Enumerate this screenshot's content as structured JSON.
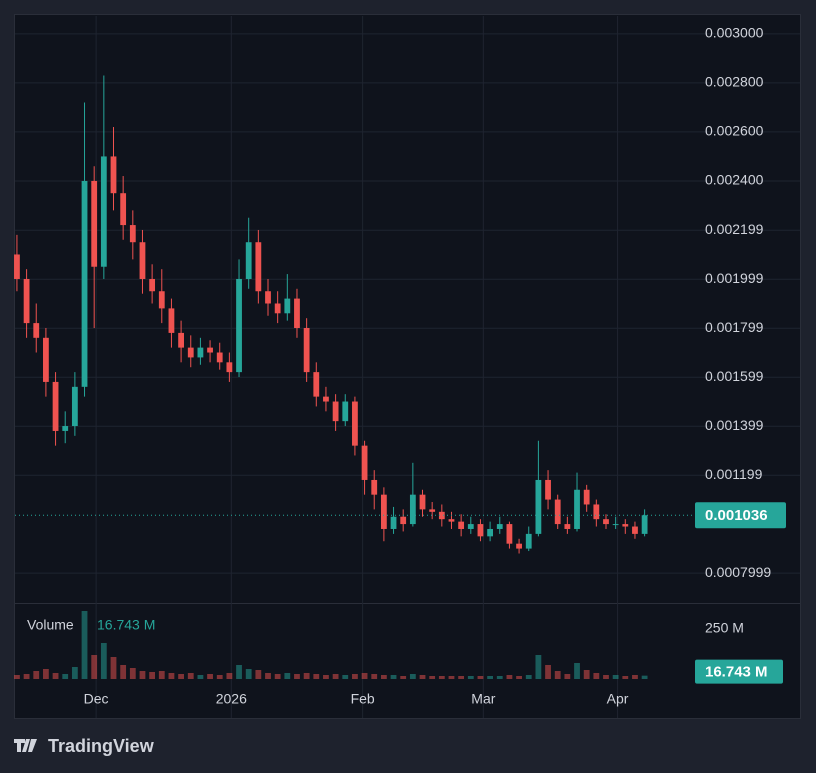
{
  "chart_data": {
    "type": "candlestick",
    "xlim": [
      -0.2,
      69.7
    ],
    "xticks": [
      {
        "value": 8.2,
        "label": "Dec"
      },
      {
        "value": 22.2,
        "label": "2026"
      },
      {
        "value": 35.8,
        "label": "Feb"
      },
      {
        "value": 48.3,
        "label": "Mar"
      },
      {
        "value": 62.2,
        "label": "Apr"
      }
    ],
    "ylim": [
      0.000678,
      0.003073
    ],
    "yticks": [
      {
        "value": 0.003,
        "label": "0.003000"
      },
      {
        "value": 0.0028,
        "label": "0.002800"
      },
      {
        "value": 0.0026,
        "label": "0.002600"
      },
      {
        "value": 0.0024,
        "label": "0.002400"
      },
      0.002199,
      0.001999,
      0.001799,
      0.001599,
      0.001399,
      0.001199,
      0.0007999
    ],
    "grid": true,
    "up_color": "#26a69a",
    "down_color": "#ef5350",
    "open": [
      0.0021,
      0.002,
      0.00182,
      0.00176,
      0.00158,
      0.00138,
      0.0014,
      0.00156,
      0.0024,
      0.00205,
      0.0025,
      0.00235,
      0.00222,
      0.00215,
      0.002,
      0.00195,
      0.00188,
      0.00178,
      0.00172,
      0.00168,
      0.00172,
      0.0017,
      0.00166,
      0.00162,
      0.002,
      0.00215,
      0.00195,
      0.0019,
      0.00186,
      0.00192,
      0.0018,
      0.00162,
      0.00152,
      0.0015,
      0.00142,
      0.0015,
      0.00132,
      0.00118,
      0.00112,
      0.00098,
      0.00103,
      0.001,
      0.00112,
      0.00106,
      0.00105,
      0.00102,
      0.00101,
      0.00098,
      0.001,
      0.00095,
      0.00098,
      0.001,
      0.00092,
      0.0009,
      0.00096,
      0.00118,
      0.0011,
      0.001,
      0.00098,
      0.00114,
      0.00108,
      0.00102,
      0.001,
      0.001,
      0.00099,
      0.00096
    ],
    "high": [
      0.00218,
      0.00204,
      0.0019,
      0.0018,
      0.00162,
      0.00146,
      0.00162,
      0.00272,
      0.00246,
      0.00283,
      0.00262,
      0.00242,
      0.00228,
      0.0022,
      0.00206,
      0.00204,
      0.00192,
      0.00183,
      0.00177,
      0.00176,
      0.00175,
      0.00174,
      0.0017,
      0.00208,
      0.00225,
      0.0022,
      0.002,
      0.00195,
      0.00202,
      0.00196,
      0.00184,
      0.00166,
      0.00156,
      0.00153,
      0.00153,
      0.00152,
      0.00134,
      0.00122,
      0.00115,
      0.00107,
      0.00106,
      0.00125,
      0.00114,
      0.00109,
      0.00108,
      0.00105,
      0.00104,
      0.00103,
      0.00102,
      0.00101,
      0.00103,
      0.00101,
      0.00094,
      0.00099,
      0.00134,
      0.00122,
      0.00112,
      0.00103,
      0.00121,
      0.00116,
      0.0011,
      0.00104,
      0.00103,
      0.00102,
      0.00101,
      0.00106
    ],
    "low": [
      0.00195,
      0.00176,
      0.0017,
      0.00152,
      0.00132,
      0.00133,
      0.00136,
      0.00152,
      0.0018,
      0.002,
      0.00228,
      0.00216,
      0.00208,
      0.00194,
      0.0019,
      0.00182,
      0.00172,
      0.00166,
      0.00164,
      0.00165,
      0.00166,
      0.00163,
      0.00158,
      0.0016,
      0.00196,
      0.0019,
      0.00185,
      0.00182,
      0.00183,
      0.00176,
      0.00158,
      0.00148,
      0.00146,
      0.00138,
      0.0014,
      0.00128,
      0.00112,
      0.00106,
      0.00093,
      0.00096,
      0.00097,
      0.00099,
      0.00103,
      0.00102,
      0.00099,
      0.00098,
      0.00095,
      0.00096,
      0.00093,
      0.00093,
      0.00096,
      0.0009,
      0.00088,
      0.00089,
      0.00095,
      0.00106,
      0.00098,
      0.00096,
      0.00097,
      0.00105,
      0.00099,
      0.00098,
      0.00098,
      0.00096,
      0.00094,
      0.00095
    ],
    "close": [
      0.002,
      0.00182,
      0.00176,
      0.00158,
      0.00138,
      0.0014,
      0.00156,
      0.0024,
      0.00205,
      0.0025,
      0.00235,
      0.00222,
      0.00215,
      0.002,
      0.00195,
      0.00188,
      0.00178,
      0.00172,
      0.00168,
      0.00172,
      0.0017,
      0.00166,
      0.00162,
      0.002,
      0.00215,
      0.00195,
      0.0019,
      0.00186,
      0.00192,
      0.0018,
      0.00162,
      0.00152,
      0.0015,
      0.00142,
      0.0015,
      0.00132,
      0.00118,
      0.00112,
      0.00098,
      0.00103,
      0.001,
      0.00112,
      0.00106,
      0.00105,
      0.00102,
      0.00101,
      0.00098,
      0.001,
      0.00095,
      0.00098,
      0.001,
      0.00092,
      0.0009,
      0.00096,
      0.00118,
      0.0011,
      0.001,
      0.00098,
      0.00114,
      0.00108,
      0.00102,
      0.001,
      0.001,
      0.00099,
      0.00096,
      0.001036
    ],
    "volume": {
      "name": "Volume",
      "axis": "y2",
      "values": [
        20,
        25,
        40,
        50,
        30,
        25,
        60,
        340,
        120,
        180,
        110,
        70,
        55,
        40,
        35,
        40,
        30,
        25,
        30,
        20,
        25,
        20,
        30,
        70,
        50,
        45,
        30,
        25,
        30,
        25,
        30,
        25,
        20,
        25,
        20,
        25,
        30,
        25,
        20,
        20,
        15,
        25,
        20,
        15,
        15,
        15,
        15,
        15,
        15,
        15,
        15,
        20,
        15,
        20,
        120,
        70,
        40,
        25,
        80,
        45,
        30,
        20,
        20,
        15,
        20,
        16.743
      ]
    },
    "y2lim": [
      0,
      380
    ],
    "y2ticks": [
      {
        "value": 250,
        "label": "250 M"
      }
    ],
    "last_price": {
      "value": 0.001036
    },
    "last_volume": {
      "value": 16.743,
      "label": "16.743 M"
    }
  },
  "brand": "TradingView"
}
